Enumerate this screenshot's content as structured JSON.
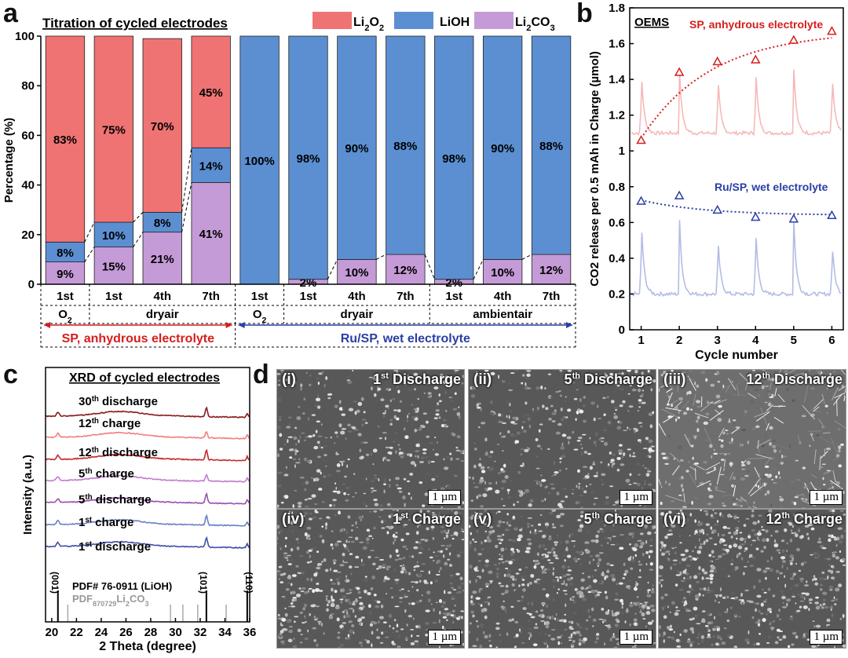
{
  "panels": {
    "a": "a",
    "b": "b",
    "c": "c",
    "d": "d"
  },
  "colors": {
    "li2o2": "#f07373",
    "lioh": "#5b8fd2",
    "li2co3": "#c49bd6",
    "red": "#d71d1d",
    "blue": "#2b3fa3"
  },
  "chart_data": [
    {
      "type": "bar",
      "panel": "a",
      "title": "Titration of cycled electrodes",
      "ylabel": "Percentage (%)",
      "ylim": [
        0,
        100
      ],
      "yticks": [
        0,
        20,
        40,
        60,
        80,
        100
      ],
      "legend": [
        "Li2O2",
        "LiOH",
        "Li2CO3"
      ],
      "categories": [
        "1st",
        "1st",
        "4th",
        "7th",
        "1st",
        "1st",
        "4th",
        "7th",
        "1st",
        "4th",
        "7th"
      ],
      "atmosphere_groups": [
        {
          "label": "O2",
          "span": 1
        },
        {
          "label": "dry air",
          "span": 3
        },
        {
          "label": "O2",
          "span": 1
        },
        {
          "label": "dry air",
          "span": 3
        },
        {
          "label": "ambient air",
          "span": 3
        }
      ],
      "electrolyte_groups": [
        {
          "label": "SP, anhydrous electrolyte",
          "span": 4
        },
        {
          "label": "Ru/SP, wet electrolyte",
          "span": 7
        }
      ],
      "series": [
        {
          "name": "Li2CO3",
          "values": [
            9,
            15,
            21,
            41,
            0,
            2,
            10,
            12,
            2,
            10,
            12
          ],
          "labels": [
            "9%",
            "15%",
            "21%",
            "41%",
            "",
            "2%",
            "10%",
            "12%",
            "2%",
            "10%",
            "12%"
          ]
        },
        {
          "name": "LiOH",
          "values": [
            8,
            10,
            8,
            14,
            100,
            98,
            90,
            88,
            98,
            90,
            88
          ],
          "labels": [
            "8%",
            "10%",
            "8%",
            "14%",
            "100%",
            "98%",
            "90%",
            "88%",
            "98%",
            "90%",
            "88%"
          ]
        },
        {
          "name": "Li2O2",
          "values": [
            83,
            75,
            70,
            45,
            0,
            0,
            0,
            0,
            0,
            0,
            0
          ],
          "labels": [
            "83%",
            "75%",
            "70%",
            "45%",
            "",
            "",
            "",
            "",
            "",
            "",
            ""
          ]
        }
      ]
    },
    {
      "type": "line",
      "panel": "b",
      "annotation": "OEMS",
      "xlabel": "Cycle number",
      "ylabel": "CO2 release per 0.5 mAh in Charge (µmol)",
      "xlim": [
        0.7,
        6.3
      ],
      "ylim": [
        0,
        1.8
      ],
      "xticks": [
        1,
        2,
        3,
        4,
        5,
        6
      ],
      "yticks": [
        "0",
        "0.2",
        "0.4",
        "0.6",
        "0.8",
        "1",
        "1.2",
        "1.4",
        "1.6",
        "1.8"
      ],
      "series": [
        {
          "name": "SP, anhydrous electrolyte",
          "x": [
            1,
            2,
            3,
            4,
            5,
            6
          ],
          "y": [
            1.06,
            1.44,
            1.5,
            1.51,
            1.62,
            1.67
          ]
        },
        {
          "name": "Ru/SP, wet electrolyte",
          "x": [
            1,
            2,
            3,
            4,
            5,
            6
          ],
          "y": [
            0.72,
            0.75,
            0.67,
            0.63,
            0.62,
            0.64
          ]
        }
      ]
    },
    {
      "type": "line",
      "panel": "c",
      "title": "XRD of cycled electrodes",
      "xlabel": "2 Theta (degree)",
      "ylabel": "Intensity (a.u.)",
      "xlim": [
        19.5,
        36
      ],
      "xticks": [
        20,
        22,
        24,
        26,
        28,
        30,
        32,
        34,
        36
      ],
      "series": [
        {
          "name": "30th discharge",
          "sup": "th",
          "base": "30",
          "suffix": "discharge"
        },
        {
          "name": "12th charge",
          "sup": "th",
          "base": "12",
          "suffix": "charge"
        },
        {
          "name": "12th discharge",
          "sup": "th",
          "base": "12",
          "suffix": "discharge"
        },
        {
          "name": "5th charge",
          "sup": "th",
          "base": "5",
          "suffix": "charge"
        },
        {
          "name": "5th discharge",
          "sup": "th",
          "base": "5",
          "suffix": "discharge"
        },
        {
          "name": "1st charge",
          "sup": "st",
          "base": "1",
          "suffix": "charge"
        },
        {
          "name": "1st discharge",
          "sup": "st",
          "base": "1",
          "suffix": "discharge"
        }
      ],
      "references": [
        "PDF# 76-0911 (LiOH)",
        "PDF# 87-0729 (Li2CO3)"
      ],
      "peak_labels": [
        {
          "text": "(001)",
          "x": 20.5
        },
        {
          "text": "(101)",
          "x": 32.5
        },
        {
          "text": "(110)",
          "x": 35.8
        }
      ]
    }
  ],
  "sem": [
    {
      "label": "(i)",
      "ord": "1",
      "sup": "st",
      "word": "Discharge"
    },
    {
      "label": "(ii)",
      "ord": "5",
      "sup": "th",
      "word": "Discharge"
    },
    {
      "label": "(iii)",
      "ord": "12",
      "sup": "th",
      "word": "Discharge"
    },
    {
      "label": "(iv)",
      "ord": "1",
      "sup": "st",
      "word": "Charge"
    },
    {
      "label": "(v)",
      "ord": "5",
      "sup": "th",
      "word": "Charge"
    },
    {
      "label": "(vi)",
      "ord": "12",
      "sup": "th",
      "word": "Charge"
    }
  ],
  "scale_bar": "1 µm"
}
